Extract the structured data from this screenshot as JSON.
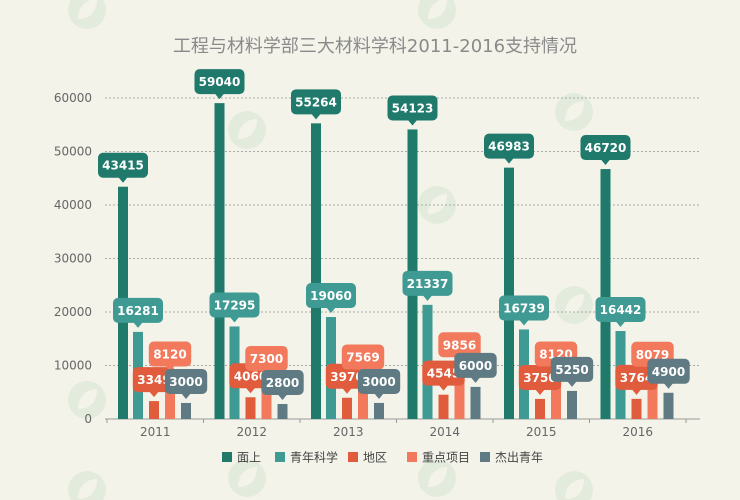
{
  "chart_data": {
    "type": "bar",
    "title": "工程与材料学部三大材料学科2011-2016支持情况",
    "categories": [
      "2011",
      "2012",
      "2013",
      "2014",
      "2015",
      "2016"
    ],
    "ylim": [
      0,
      60000
    ],
    "yticks": [
      0,
      10000,
      20000,
      30000,
      40000,
      50000,
      60000
    ],
    "grid": true,
    "legend_position": "bottom",
    "series": [
      {
        "name": "面上",
        "color": "#1f7a6c",
        "values": [
          43415,
          59040,
          55264,
          54123,
          46983,
          46720
        ]
      },
      {
        "name": "青年科学",
        "color": "#3e9a92",
        "values": [
          16281,
          17295,
          19060,
          21337,
          16739,
          16442
        ]
      },
      {
        "name": "地区",
        "color": "#e05c3c",
        "values": [
          3349,
          4060,
          3970,
          4545,
          3750,
          3764
        ]
      },
      {
        "name": "重点项目",
        "color": "#f2795c",
        "values": [
          8120,
          7300,
          7569,
          9856,
          8120,
          8079
        ]
      },
      {
        "name": "杰出青年",
        "color": "#5f7a82",
        "values": [
          3000,
          2800,
          3000,
          6000,
          5250,
          4900
        ]
      }
    ]
  }
}
